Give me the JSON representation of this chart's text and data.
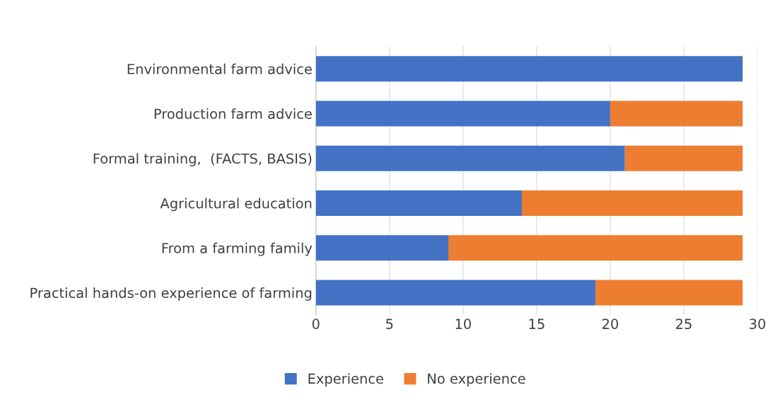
{
  "chart_data": {
    "type": "bar",
    "orientation": "horizontal",
    "stacked": true,
    "categories": [
      "Environmental farm advice",
      "Production farm advice",
      "Formal training,  (FACTS, BASIS)",
      "Agricultural education",
      "From a farming family",
      "Practical hands-on experience of farming"
    ],
    "series": [
      {
        "name": "Experience",
        "color": "#4472c4",
        "values": [
          29,
          20,
          21,
          14,
          9,
          19
        ]
      },
      {
        "name": "No experience",
        "color": "#ed7d31",
        "values": [
          0,
          9,
          8,
          15,
          20,
          10
        ]
      }
    ],
    "xlim": [
      0,
      30
    ],
    "xticks": [
      0,
      5,
      10,
      15,
      20,
      25,
      30
    ],
    "grid": "x",
    "legend": "bottom"
  }
}
